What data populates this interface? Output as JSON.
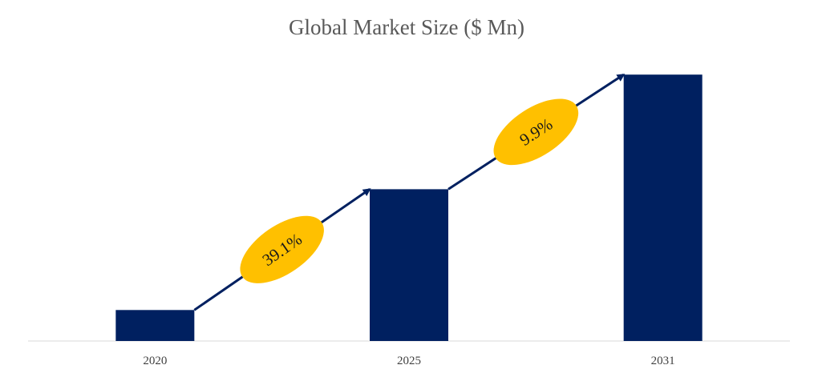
{
  "chart_data": {
    "type": "bar",
    "title": "Global Market Size ($ Mn)",
    "categories": [
      "2020",
      "2025",
      "2031"
    ],
    "values": [
      1.0,
      4.9,
      8.6
    ],
    "ylim": [
      0,
      9.2
    ],
    "xlabel": "",
    "ylabel": "",
    "grid": false,
    "legend": "none",
    "growth_annotations": [
      {
        "from": "2020",
        "to": "2025",
        "label": "39.1%"
      },
      {
        "from": "2025",
        "to": "2031",
        "label": "9.9%"
      }
    ],
    "colors": {
      "bar": "#002060",
      "arrow": "#002060",
      "annotation_fill": "#FFC000",
      "axis": "#d9d9d9",
      "title": "#595959"
    }
  }
}
